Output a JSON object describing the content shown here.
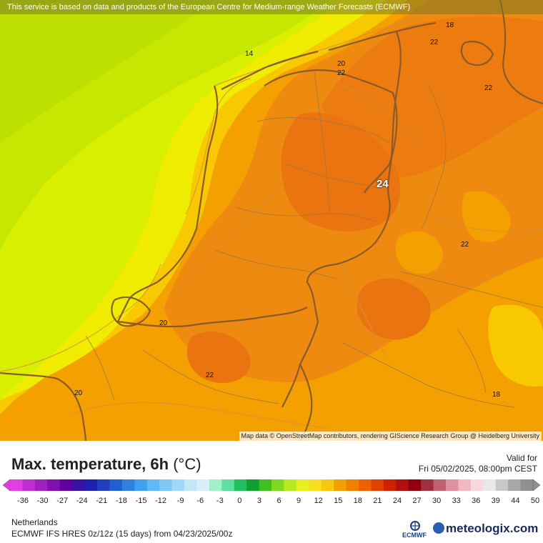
{
  "disclaimer": "This service is based on data and products of the European Centre for Medium-range Weather Forecasts (ECMWF)",
  "attribution": "Map data © OpenStreetMap contributors, rendering GIScience Research Group @ Heidelberg University",
  "contour_labels": [
    {
      "text": "18",
      "name": "contour-label-18-top-right"
    },
    {
      "text": "14",
      "name": "contour-label-14-sea"
    },
    {
      "text": "22",
      "name": "contour-label-22-north"
    },
    {
      "text": "20",
      "name": "contour-label-20-coast"
    },
    {
      "text": "22",
      "name": "contour-label-22-coast"
    },
    {
      "text": "22",
      "name": "contour-label-22-east"
    },
    {
      "text": "24",
      "name": "contour-label-24-center"
    },
    {
      "text": "22",
      "name": "contour-label-22-southeast"
    },
    {
      "text": "20",
      "name": "contour-label-20-zeeland"
    },
    {
      "text": "22",
      "name": "contour-label-22-south"
    },
    {
      "text": "20",
      "name": "contour-label-20-southwest"
    },
    {
      "text": "18",
      "name": "contour-label-18-right-bottom"
    }
  ],
  "legend": {
    "title": "Max. temperature, 6h",
    "unit": "(°C)",
    "valid_label": "Valid for",
    "valid_date": "Fri 05/02/2025, 08:00pm CEST",
    "ticks": [
      "-36",
      "-30",
      "-27",
      "-24",
      "-21",
      "-18",
      "-15",
      "-12",
      "-9",
      "-6",
      "-3",
      "0",
      "3",
      "6",
      "9",
      "12",
      "15",
      "18",
      "21",
      "24",
      "27",
      "30",
      "33",
      "36",
      "39",
      "44",
      "50"
    ],
    "colors": [
      "#e040e0",
      "#c030d0",
      "#a020c0",
      "#8010b0",
      "#6000a0",
      "#3a10a0",
      "#2020b0",
      "#2040c0",
      "#2060d0",
      "#3080e0",
      "#40a0f0",
      "#60b8f8",
      "#80c8f8",
      "#a0d8f8",
      "#c0e8f8",
      "#d8f0f8",
      "#a0f0c8",
      "#60e0a0",
      "#20c060",
      "#10a030",
      "#40c020",
      "#80d820",
      "#b8e820",
      "#e8f020",
      "#f8e020",
      "#f8c810",
      "#f0a000",
      "#f08000",
      "#f06000",
      "#e04000",
      "#d02000",
      "#b01010",
      "#900010",
      "#a03040",
      "#c06070",
      "#e090a0",
      "#f0b8c0",
      "#f8d8e0",
      "#e8e8e8",
      "#c8c8c8",
      "#a8a8a8",
      "#909090"
    ],
    "region": "Netherlands",
    "model": "ECMWF IFS HRES 0z/12z (15 days) from  04/23/2025/00z"
  },
  "logos": {
    "ecmwf": "ECMWF",
    "meteologix": "meteologix.com"
  }
}
